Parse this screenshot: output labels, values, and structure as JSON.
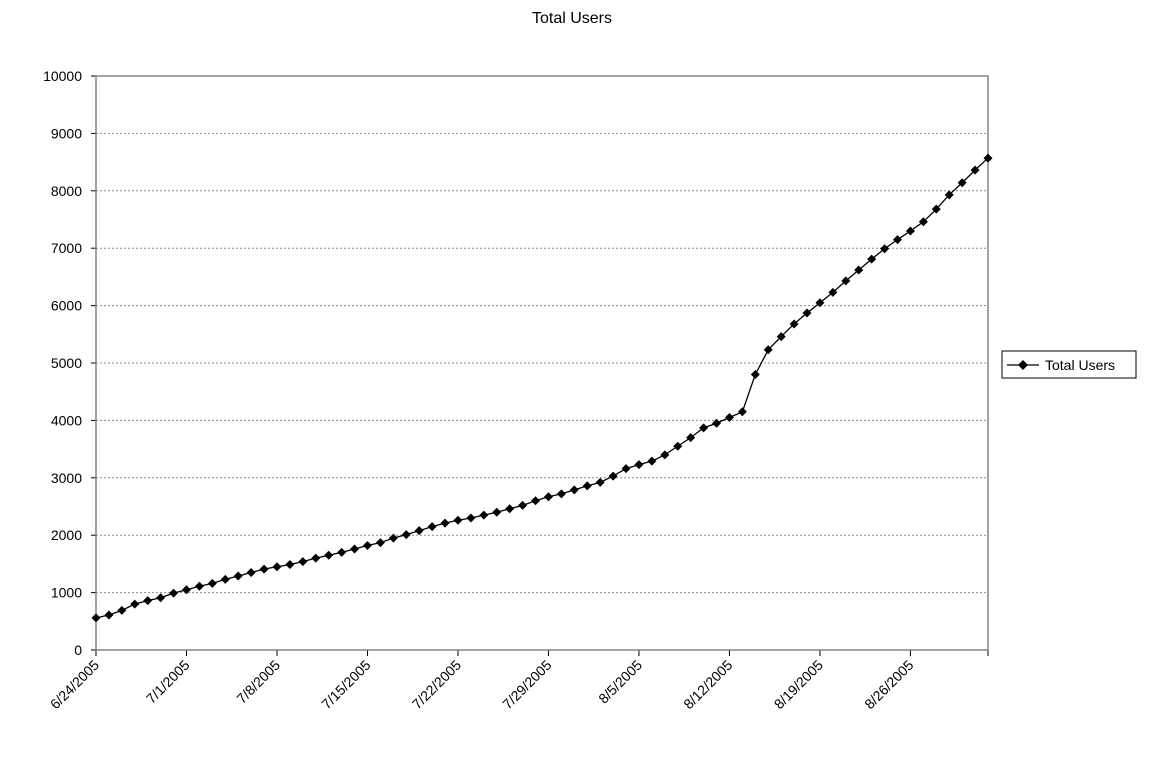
{
  "chart_data": {
    "type": "line",
    "title": "Total Users",
    "xlabel": "",
    "ylabel": "",
    "ylim": [
      0,
      10000
    ],
    "yticks": [
      0,
      1000,
      2000,
      3000,
      4000,
      5000,
      6000,
      7000,
      8000,
      9000,
      10000
    ],
    "xlim": [
      "6/24/2005",
      "9/1/2005"
    ],
    "xticks": [
      "6/24/2005",
      "7/1/2005",
      "7/8/2005",
      "7/15/2005",
      "7/22/2005",
      "7/29/2005",
      "8/5/2005",
      "8/12/2005",
      "8/19/2005",
      "8/26/2005"
    ],
    "grid": "horizontal dotted",
    "legend": "right",
    "series": [
      {
        "name": "Total Users",
        "color": "#000000",
        "marker": "diamond",
        "x": [
          "6/24/2005",
          "6/25/2005",
          "6/26/2005",
          "6/27/2005",
          "6/28/2005",
          "6/29/2005",
          "6/30/2005",
          "7/1/2005",
          "7/2/2005",
          "7/3/2005",
          "7/4/2005",
          "7/5/2005",
          "7/6/2005",
          "7/7/2005",
          "7/8/2005",
          "7/9/2005",
          "7/10/2005",
          "7/11/2005",
          "7/12/2005",
          "7/13/2005",
          "7/14/2005",
          "7/15/2005",
          "7/16/2005",
          "7/17/2005",
          "7/18/2005",
          "7/19/2005",
          "7/20/2005",
          "7/21/2005",
          "7/22/2005",
          "7/23/2005",
          "7/24/2005",
          "7/25/2005",
          "7/26/2005",
          "7/27/2005",
          "7/28/2005",
          "7/29/2005",
          "7/30/2005",
          "7/31/2005",
          "8/1/2005",
          "8/2/2005",
          "8/3/2005",
          "8/4/2005",
          "8/5/2005",
          "8/6/2005",
          "8/7/2005",
          "8/8/2005",
          "8/9/2005",
          "8/10/2005",
          "8/11/2005",
          "8/12/2005",
          "8/13/2005",
          "8/14/2005",
          "8/15/2005",
          "8/16/2005",
          "8/17/2005",
          "8/18/2005",
          "8/19/2005",
          "8/20/2005",
          "8/21/2005",
          "8/22/2005",
          "8/23/2005",
          "8/24/2005",
          "8/25/2005",
          "8/26/2005",
          "8/27/2005",
          "8/28/2005",
          "8/29/2005",
          "8/30/2005",
          "8/31/2005",
          "9/1/2005"
        ],
        "y": [
          560,
          610,
          690,
          800,
          860,
          910,
          990,
          1050,
          1110,
          1160,
          1230,
          1290,
          1350,
          1410,
          1450,
          1490,
          1540,
          1600,
          1650,
          1700,
          1760,
          1820,
          1870,
          1950,
          2010,
          2080,
          2150,
          2210,
          2260,
          2300,
          2350,
          2400,
          2460,
          2520,
          2600,
          2670,
          2720,
          2790,
          2860,
          2920,
          3030,
          3160,
          3230,
          3290,
          3400,
          3550,
          3700,
          3870,
          3950,
          4050,
          4150,
          4800,
          5230,
          5460,
          5680,
          5870,
          6050,
          6230,
          6430,
          6620,
          6810,
          6990,
          7150,
          7300,
          7460,
          7680,
          7930,
          8140,
          8360,
          8570
        ]
      }
    ]
  }
}
